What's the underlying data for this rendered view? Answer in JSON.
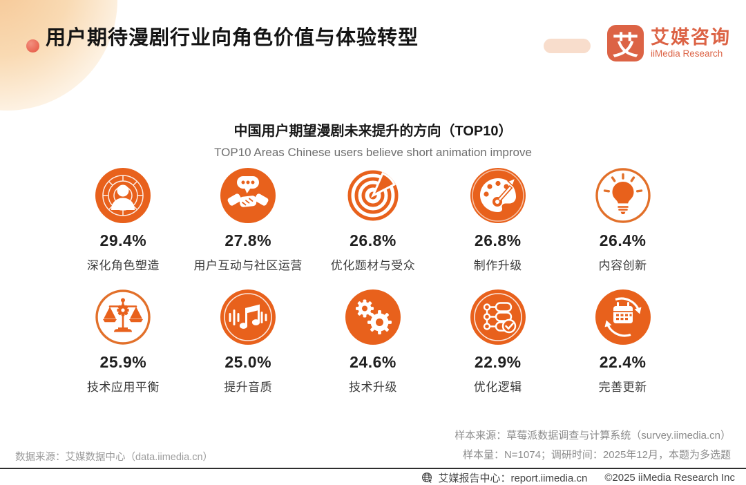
{
  "page_title": "用户期待漫剧行业向角色价值与体验转型",
  "logo": {
    "mark": "艾",
    "name_cn": "艾媒咨询",
    "name_en": "iiMedia Research"
  },
  "chart": {
    "title": "中国用户期望漫剧未来提升的方向（TOP10）",
    "subtitle": "TOP10 Areas Chinese users believe short animation improve"
  },
  "chart_data": {
    "type": "table",
    "layout": "pictorial stat grid, 2 rows x 5 columns, ranked TOP10",
    "title": "中国用户期望漫剧未来提升的方向（TOP10）",
    "subtitle": "TOP10 Areas Chinese users believe short animation improve",
    "unit": "%",
    "categories": [
      "深化角色塑造",
      "用户互动与社区运营",
      "优化题材与受众",
      "制作升级",
      "内容创新",
      "技术应用平衡",
      "提升音质",
      "技术升级",
      "优化逻辑",
      "完善更新"
    ],
    "values": [
      29.4,
      27.8,
      26.8,
      26.8,
      26.4,
      25.9,
      25.0,
      24.6,
      22.9,
      22.4
    ],
    "note": "本题为多选题"
  },
  "items": [
    {
      "icon": "person-target-icon"
    },
    {
      "icon": "handshake-chat-icon"
    },
    {
      "icon": "target-pie-icon"
    },
    {
      "icon": "palette-brush-icon"
    },
    {
      "icon": "lightbulb-icon"
    },
    {
      "icon": "scales-gear-icon"
    },
    {
      "icon": "music-note-icon"
    },
    {
      "icon": "gears-icon"
    },
    {
      "icon": "checklist-flow-icon"
    },
    {
      "icon": "calendar-refresh-icon"
    }
  ],
  "sources": {
    "data_source": "数据来源：艾媒数据中心（data.iimedia.cn）",
    "sample_source": "样本来源：草莓派数据调查与计算系统（survey.iimedia.cn）",
    "sample_info": "样本量：N=1074；调研时间：2025年12月，本题为多选题"
  },
  "footer": {
    "report_center": "艾媒报告中心：report.iimedia.cn",
    "copyright": "©2025  iiMedia Research Inc"
  },
  "colors": {
    "accent": "#E8611C",
    "accent_outline": "#E2702A",
    "logo": "#DC6345"
  }
}
